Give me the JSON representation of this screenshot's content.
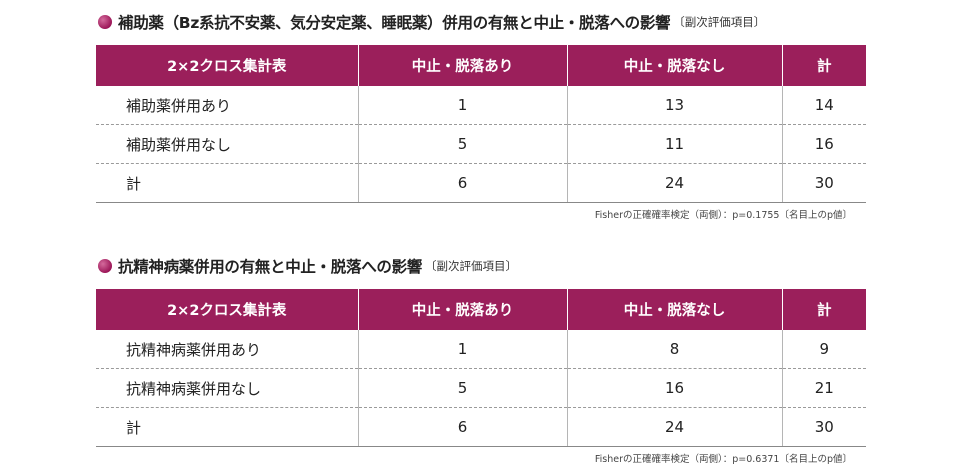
{
  "colors": {
    "accent": "#9b1f5b",
    "header_text": "#ffffff"
  },
  "sections": [
    {
      "title": "補助薬（Bz系抗不安薬、気分安定薬、睡眠薬）併用の有無と中止・脱落への影響",
      "subtitle": "〔副次評価項目〕",
      "headers": [
        "2×2クロス集計表",
        "中止・脱落あり",
        "中止・脱落なし",
        "計"
      ],
      "rows": [
        [
          "補助薬併用あり",
          "1",
          "13",
          "14"
        ],
        [
          "補助薬併用なし",
          "5",
          "11",
          "16"
        ],
        [
          "計",
          "6",
          "24",
          "30"
        ]
      ],
      "footnote": "Fisherの正確確率検定（両側）：p=0.1755〔名目上のp値〕"
    },
    {
      "title": "抗精神病薬併用の有無と中止・脱落への影響",
      "subtitle": "〔副次評価項目〕",
      "headers": [
        "2×2クロス集計表",
        "中止・脱落あり",
        "中止・脱落なし",
        "計"
      ],
      "rows": [
        [
          "抗精神病薬併用あり",
          "1",
          "8",
          "9"
        ],
        [
          "抗精神病薬併用なし",
          "5",
          "16",
          "21"
        ],
        [
          "計",
          "6",
          "24",
          "30"
        ]
      ],
      "footnote": "Fisherの正確確率検定（両側）：p=0.6371〔名目上のp値〕"
    }
  ]
}
